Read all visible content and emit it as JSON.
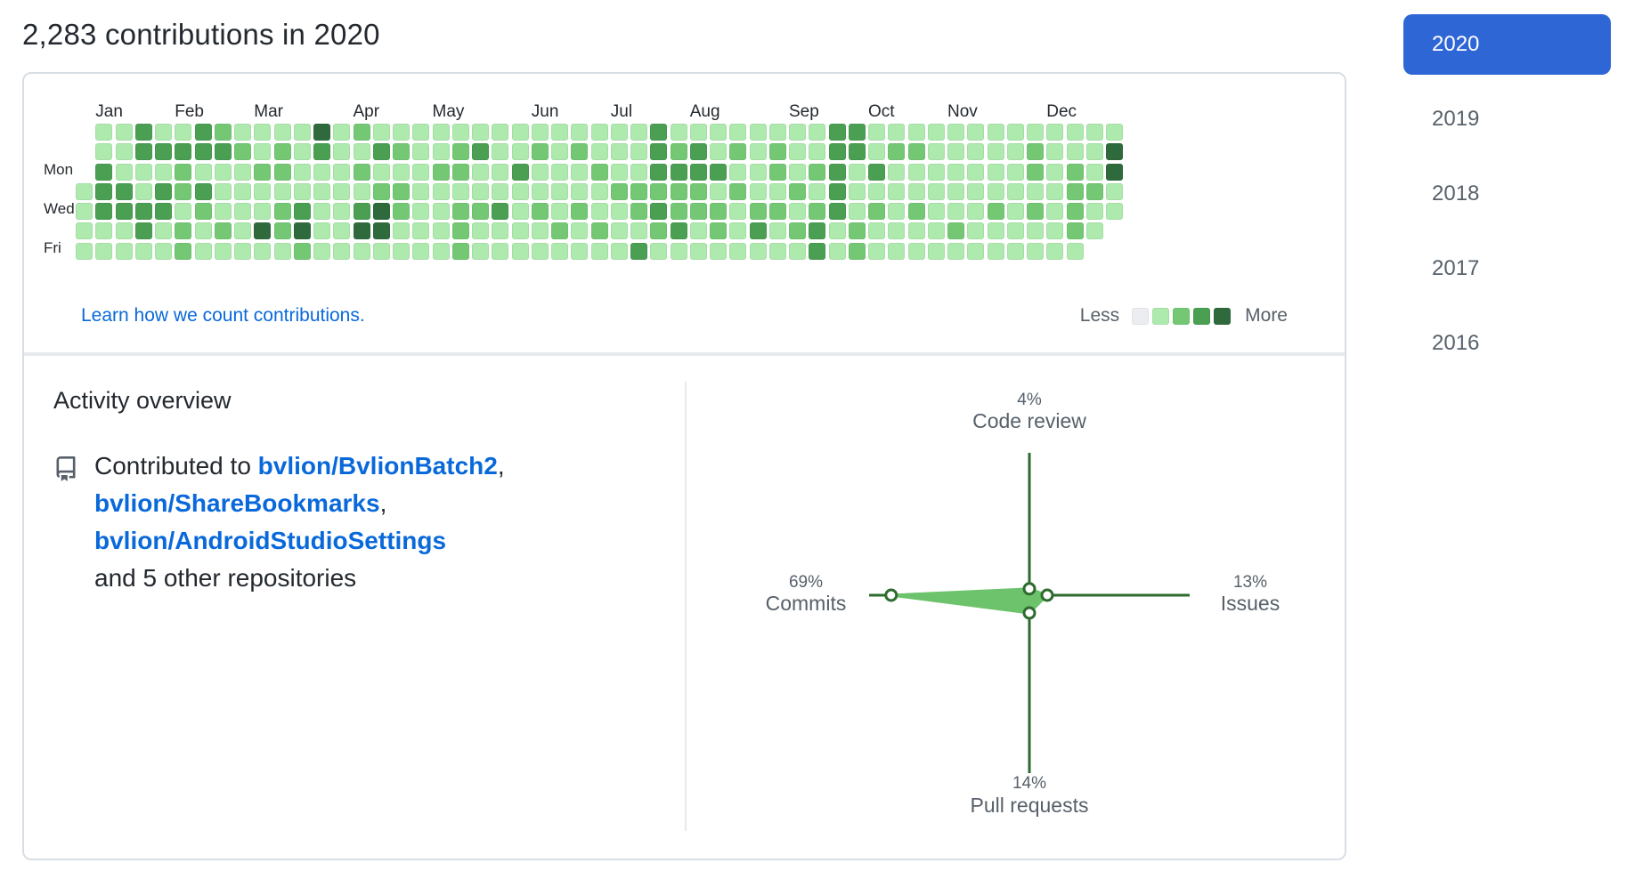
{
  "header": {
    "title": "2,283 contributions in 2020"
  },
  "calendar": {
    "months": [
      "Jan",
      "Feb",
      "Mar",
      "Apr",
      "May",
      "Jun",
      "Jul",
      "Aug",
      "Sep",
      "Oct",
      "Nov",
      "Dec"
    ],
    "day_labels": [
      "Mon",
      "Wed",
      "Fri"
    ],
    "learn_link": "Learn how we count contributions.",
    "legend_less": "Less",
    "legend_more": "More",
    "level_colors": [
      "#ebedf0",
      "#aee9ae",
      "#74c874",
      "#4a9f52",
      "#2f6a3d"
    ],
    "weeks": [
      [
        null,
        null,
        null,
        1,
        1,
        1,
        1
      ],
      [
        1,
        1,
        3,
        3,
        3,
        1,
        1
      ],
      [
        1,
        1,
        1,
        3,
        3,
        1,
        1
      ],
      [
        3,
        3,
        1,
        1,
        3,
        3,
        1
      ],
      [
        1,
        3,
        1,
        3,
        3,
        1,
        1
      ],
      [
        1,
        3,
        2,
        2,
        1,
        2,
        2
      ],
      [
        3,
        3,
        1,
        3,
        2,
        1,
        1
      ],
      [
        2,
        3,
        1,
        1,
        1,
        2,
        1
      ],
      [
        1,
        2,
        1,
        1,
        1,
        1,
        1
      ],
      [
        1,
        1,
        2,
        1,
        1,
        4,
        1
      ],
      [
        1,
        2,
        2,
        1,
        2,
        2,
        1
      ],
      [
        1,
        1,
        1,
        1,
        3,
        4,
        2
      ],
      [
        4,
        3,
        1,
        1,
        1,
        1,
        1
      ],
      [
        1,
        1,
        1,
        1,
        1,
        1,
        1
      ],
      [
        2,
        1,
        2,
        1,
        3,
        4,
        1
      ],
      [
        1,
        3,
        1,
        2,
        4,
        4,
        1
      ],
      [
        1,
        2,
        1,
        2,
        2,
        1,
        1
      ],
      [
        1,
        1,
        1,
        1,
        1,
        1,
        1
      ],
      [
        1,
        1,
        2,
        1,
        1,
        1,
        1
      ],
      [
        1,
        2,
        2,
        1,
        2,
        2,
        2
      ],
      [
        1,
        3,
        1,
        1,
        2,
        1,
        1
      ],
      [
        1,
        1,
        1,
        1,
        3,
        1,
        1
      ],
      [
        1,
        1,
        3,
        1,
        1,
        1,
        1
      ],
      [
        1,
        2,
        1,
        1,
        2,
        1,
        1
      ],
      [
        1,
        1,
        1,
        1,
        1,
        2,
        1
      ],
      [
        1,
        2,
        1,
        1,
        2,
        1,
        1
      ],
      [
        1,
        1,
        2,
        1,
        1,
        2,
        1
      ],
      [
        1,
        1,
        1,
        2,
        1,
        1,
        1
      ],
      [
        1,
        1,
        1,
        2,
        2,
        1,
        3
      ],
      [
        3,
        3,
        3,
        2,
        3,
        2,
        1
      ],
      [
        1,
        2,
        3,
        2,
        2,
        3,
        1
      ],
      [
        1,
        3,
        3,
        2,
        2,
        1,
        1
      ],
      [
        1,
        1,
        3,
        1,
        2,
        2,
        1
      ],
      [
        1,
        2,
        1,
        2,
        1,
        1,
        1
      ],
      [
        1,
        1,
        1,
        1,
        2,
        3,
        1
      ],
      [
        1,
        2,
        2,
        1,
        2,
        1,
        1
      ],
      [
        1,
        1,
        1,
        2,
        1,
        2,
        1
      ],
      [
        1,
        1,
        2,
        1,
        2,
        3,
        3
      ],
      [
        3,
        3,
        3,
        3,
        3,
        1,
        1
      ],
      [
        3,
        3,
        1,
        1,
        1,
        2,
        2
      ],
      [
        1,
        1,
        3,
        1,
        2,
        1,
        1
      ],
      [
        1,
        2,
        1,
        1,
        1,
        1,
        1
      ],
      [
        1,
        2,
        1,
        1,
        2,
        1,
        1
      ],
      [
        1,
        1,
        1,
        1,
        1,
        1,
        1
      ],
      [
        1,
        1,
        1,
        1,
        1,
        2,
        1
      ],
      [
        1,
        1,
        1,
        1,
        1,
        1,
        1
      ],
      [
        1,
        1,
        1,
        1,
        2,
        1,
        1
      ],
      [
        1,
        1,
        1,
        1,
        1,
        1,
        1
      ],
      [
        1,
        2,
        2,
        1,
        2,
        1,
        1
      ],
      [
        1,
        1,
        1,
        1,
        1,
        1,
        1
      ],
      [
        1,
        1,
        2,
        2,
        2,
        2,
        1
      ],
      [
        1,
        1,
        1,
        2,
        1,
        1,
        null
      ],
      [
        1,
        4,
        4,
        1,
        1,
        null,
        null
      ]
    ]
  },
  "overview": {
    "title": "Activity overview",
    "contributed_prefix": "Contributed to",
    "repos": [
      "bvlion/BvlionBatch2",
      "bvlion/ShareBookmarks",
      "bvlion/AndroidStudioSettings"
    ],
    "others": "and 5 other repositories",
    "comma": ","
  },
  "radar": {
    "code_review": {
      "pct": "4%",
      "label": "Code review",
      "value": 4
    },
    "issues": {
      "pct": "13%",
      "label": "Issues",
      "value": 13
    },
    "pull_requests": {
      "pct": "14%",
      "label": "Pull requests",
      "value": 14
    },
    "commits": {
      "pct": "69%",
      "label": "Commits",
      "value": 69
    },
    "line_color": "#2e6b2e",
    "fill_color": "#6cc36c"
  },
  "years": {
    "items": [
      "2020",
      "2019",
      "2018",
      "2017",
      "2016"
    ],
    "selected": "2020",
    "selected_color": "#2f66d6"
  }
}
